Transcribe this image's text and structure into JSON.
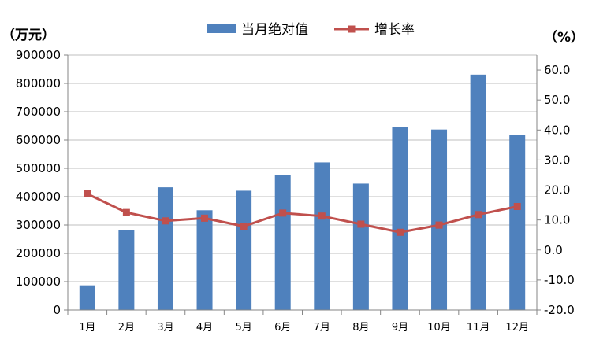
{
  "chart_data": {
    "type": "bar+line",
    "categories": [
      "1月",
      "2月",
      "3月",
      "4月",
      "5月",
      "6月",
      "7月",
      "8月",
      "9月",
      "10月",
      "11月",
      "12月"
    ],
    "series": [
      {
        "name": "当月绝对值",
        "type": "bar",
        "axis": "left",
        "color": "#4f81bd",
        "values": [
          87000,
          281000,
          433000,
          352000,
          421000,
          477000,
          521000,
          446000,
          646000,
          637000,
          831000,
          617000
        ]
      },
      {
        "name": "增长率",
        "type": "line",
        "axis": "right",
        "color": "#c0504d",
        "values": [
          18.7,
          12.5,
          9.7,
          10.6,
          7.9,
          12.3,
          11.3,
          8.6,
          5.9,
          8.3,
          11.8,
          14.5
        ]
      }
    ],
    "left_axis": {
      "unit_label": "（万元）",
      "ylim": [
        0,
        900000
      ],
      "ticks": [
        "0",
        "100000",
        "200000",
        "300000",
        "400000",
        "500000",
        "600000",
        "700000",
        "800000",
        "900000"
      ]
    },
    "right_axis": {
      "unit_label": "（%）",
      "ylim": [
        -20,
        65
      ],
      "ticks": [
        "-20.0",
        "-10.0",
        "0.0",
        "10.0",
        "20.0",
        "30.0",
        "40.0",
        "50.0",
        "60.0"
      ]
    },
    "grid": "horizontal",
    "legend_position": "top"
  }
}
